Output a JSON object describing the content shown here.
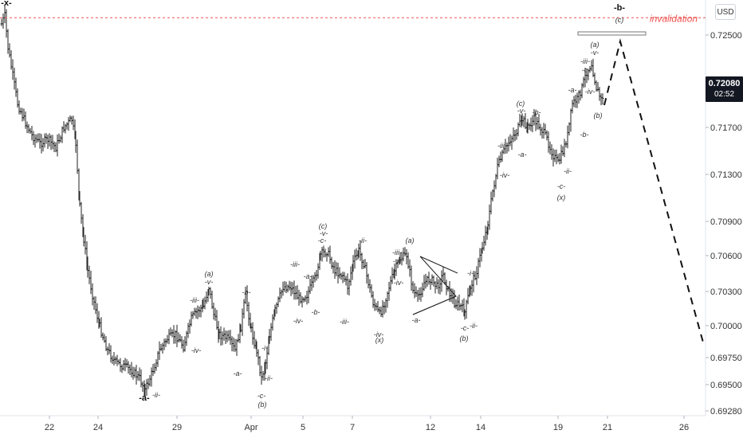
{
  "chart_data": {
    "type": "candlestick-ohlc",
    "symbol_currency": "USD",
    "last_price": "0.72080",
    "countdown": "02:52",
    "ylim": [
      0.6925,
      0.7275
    ],
    "y_ticks": [
      "0.72500",
      "0.71700",
      "0.71300",
      "0.70900",
      "0.70600",
      "0.70300",
      "0.70000",
      "0.69750",
      "0.69500",
      "0.69280"
    ],
    "x_ticks": [
      "22",
      "24",
      "29",
      "Apr",
      "5",
      "7",
      "12",
      "14",
      "19",
      "21",
      "26"
    ],
    "invalidation_label": "invalidation",
    "invalidation_level": 0.7265,
    "colors": {
      "bars": "#222222",
      "invalidation": "#ef5350",
      "projection": "#111111",
      "badge": "#131722"
    },
    "waves": [
      {
        "text": "-x-",
        "bold": true
      },
      {
        "text": "-a-",
        "bold": true
      },
      {
        "text": "-ii-"
      },
      {
        "text": "-iii-"
      },
      {
        "text": "-iv-"
      },
      {
        "text": "(a)"
      },
      {
        "text": "-v-"
      },
      {
        "text": "-a-"
      },
      {
        "text": "-b-"
      },
      {
        "text": "-c-"
      },
      {
        "text": "(b)"
      },
      {
        "text": "-i-"
      },
      {
        "text": "-ii-"
      },
      {
        "text": "-iii-"
      },
      {
        "text": "-iv-"
      },
      {
        "text": "(c)"
      },
      {
        "text": "-v-"
      },
      {
        "text": "-c-"
      },
      {
        "text": "-a-"
      },
      {
        "text": "-b-"
      },
      {
        "text": "-iii-"
      },
      {
        "text": "-ii-"
      },
      {
        "text": "-iv-"
      },
      {
        "text": "(x)"
      },
      {
        "text": "(a)"
      },
      {
        "text": "-iii-"
      },
      {
        "text": "-iv-"
      },
      {
        "text": "-v-"
      },
      {
        "text": "-a-"
      },
      {
        "text": "-c-"
      },
      {
        "text": "-ii-"
      },
      {
        "text": "(b)"
      },
      {
        "text": "-i-"
      },
      {
        "text": "-iii-"
      },
      {
        "text": "-iv-"
      },
      {
        "text": "-a-"
      },
      {
        "text": "(c)"
      },
      {
        "text": "-v-"
      },
      {
        "text": "-b-"
      },
      {
        "text": "-c-"
      },
      {
        "text": "-ii-"
      },
      {
        "text": "(x)"
      },
      {
        "text": "-a-"
      },
      {
        "text": "-b-"
      },
      {
        "text": "(a)"
      },
      {
        "text": "-v-"
      },
      {
        "text": "-iii-"
      },
      {
        "text": "-c-"
      },
      {
        "text": "-iv-"
      },
      {
        "text": "(b)"
      },
      {
        "text": "-b-",
        "bold": true
      },
      {
        "text": "(c)"
      }
    ]
  }
}
